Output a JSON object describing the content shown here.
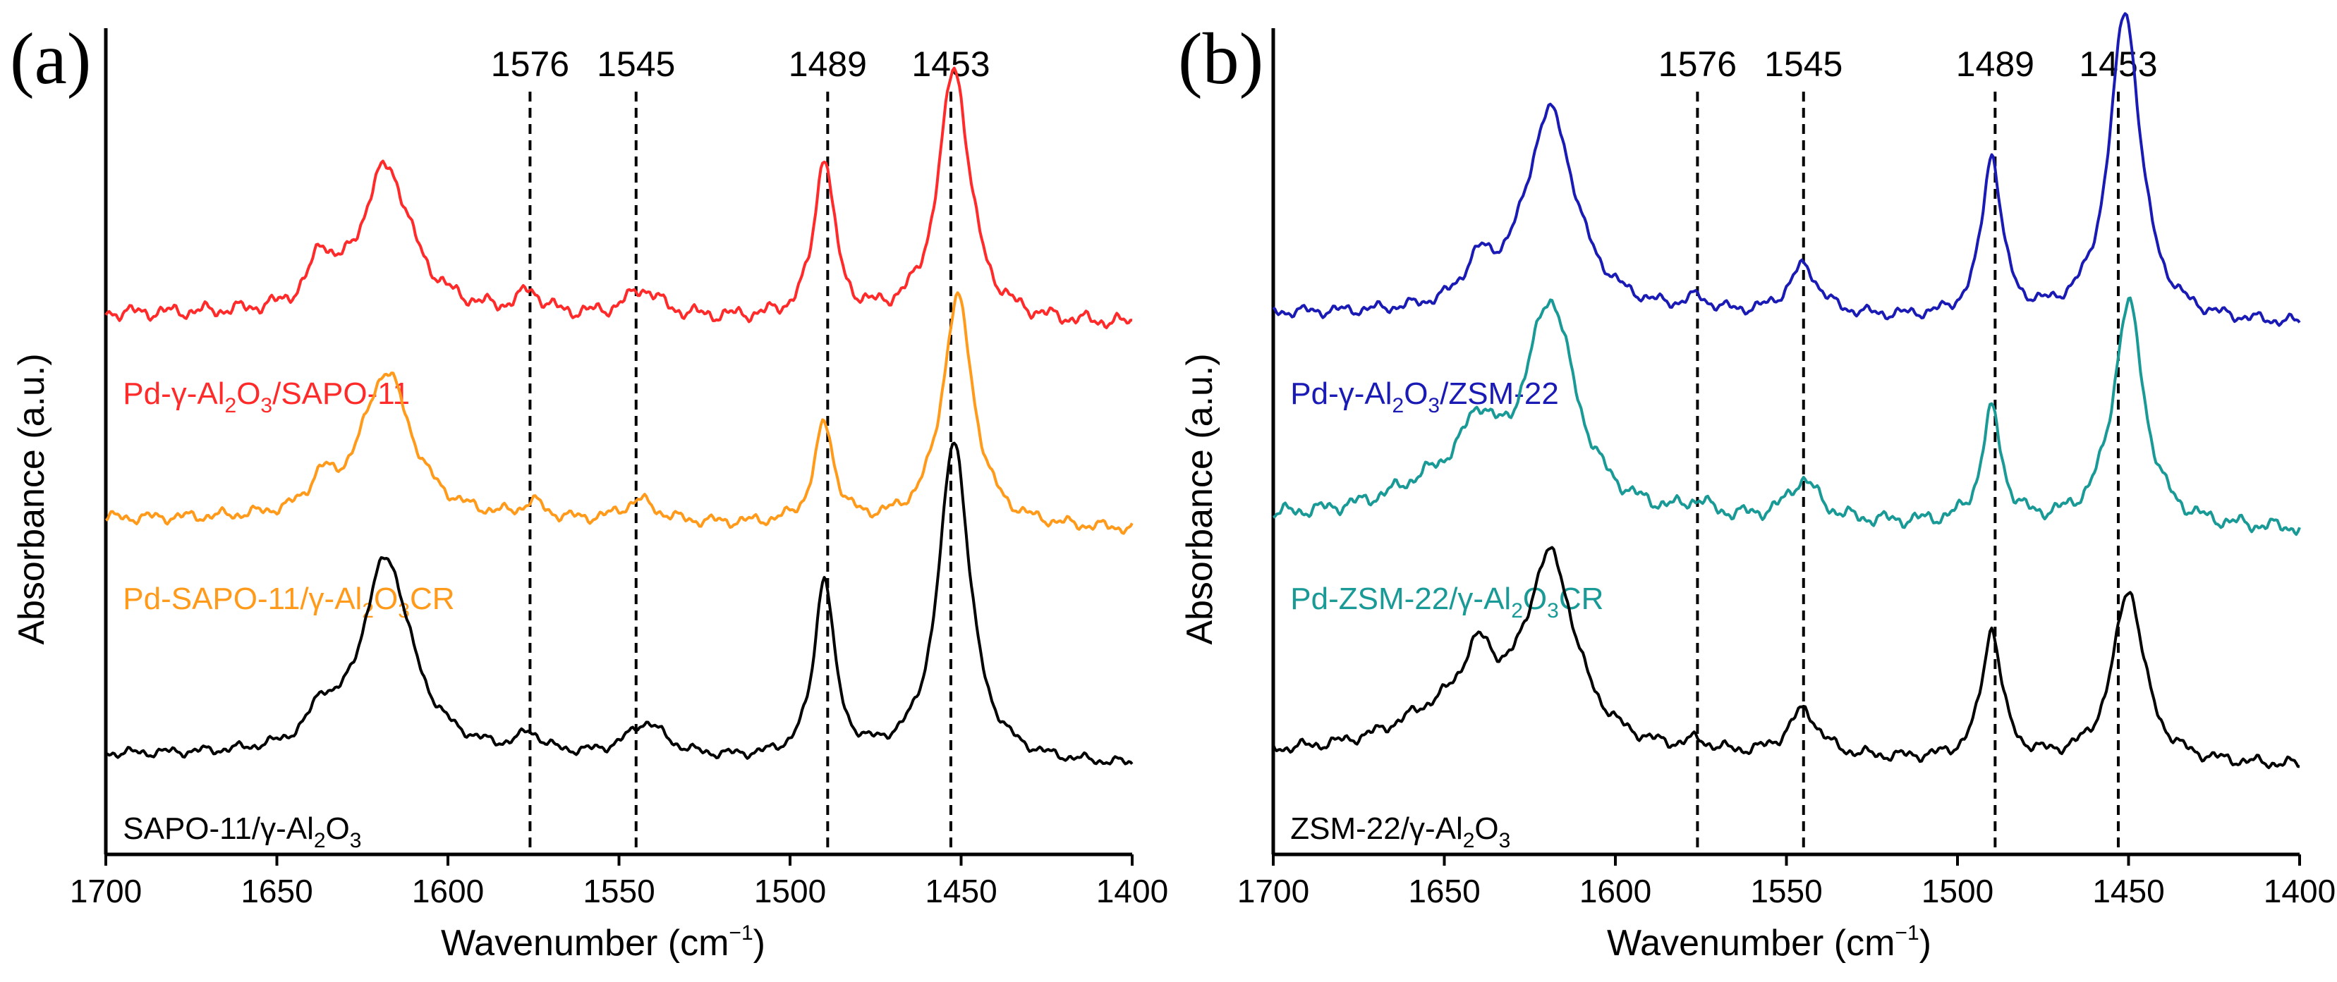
{
  "chart_data": [
    {
      "type": "line",
      "panel_label": "(a)",
      "xlabel": "Wavenumber (cm",
      "xlabel_sup": "−1",
      "xlabel_end": ")",
      "ylabel": "Absorbance (a.u.)",
      "xlim": [
        1700,
        1400
      ],
      "x_ticks": [
        "1700",
        "1650",
        "1600",
        "1550",
        "1500",
        "1450",
        "1400"
      ],
      "reference_lines": [
        "1576",
        "1545",
        "1489",
        "1453"
      ],
      "series": [
        {
          "name_parts": [
            "Pd-γ-Al",
            "2",
            "O",
            "3",
            "/SAPO-11"
          ],
          "color": "#ff2a2a",
          "baseline": 8.6,
          "noise": 0.15,
          "peaks": [
            [
              1637,
              0.75,
              4
            ],
            [
              1618,
              2.4,
              9
            ],
            [
              1576,
              0.35,
              4
            ],
            [
              1543,
              0.45,
              6
            ],
            [
              1490,
              2.6,
              3.5
            ],
            [
              1452,
              4.1,
              5.5
            ]
          ]
        },
        {
          "name_parts": [
            "Pd-SAPO-11/γ-Al",
            "2",
            "O",
            "3",
            "CR"
          ],
          "color": "#ff9a1a",
          "baseline": 5.3,
          "noise": 0.12,
          "peaks": [
            [
              1637,
              0.45,
              4
            ],
            [
              1618,
              2.4,
              9
            ],
            [
              1575,
              0.25,
              4
            ],
            [
              1544,
              0.35,
              6
            ],
            [
              1490,
              1.6,
              3.5
            ],
            [
              1451,
              3.7,
              5.5
            ]
          ]
        },
        {
          "name_parts": [
            "SAPO-11/γ-Al",
            "2",
            "O",
            "3"
          ],
          "color": "#000000",
          "baseline": 1.5,
          "noise": 0.1,
          "peaks": [
            [
              1637,
              0.5,
              4
            ],
            [
              1618,
              3.2,
              9
            ],
            [
              1576,
              0.3,
              4
            ],
            [
              1542,
              0.55,
              7
            ],
            [
              1490,
              2.9,
              3.5
            ],
            [
              1452,
              5.2,
              5.5
            ]
          ]
        }
      ]
    },
    {
      "type": "line",
      "panel_label": "(b)",
      "xlabel": "Wavenumber (cm",
      "xlabel_sup": "−1",
      "xlabel_end": ")",
      "ylabel": "Absorbance (a.u.)",
      "xlim": [
        1700,
        1400
      ],
      "x_ticks": [
        "1700",
        "1650",
        "1600",
        "1550",
        "1500",
        "1450",
        "1400"
      ],
      "reference_lines": [
        "1576",
        "1545",
        "1489",
        "1453"
      ],
      "series": [
        {
          "name_parts": [
            "Pd-γ-Al",
            "2",
            "O",
            "3",
            "/ZSM-22"
          ],
          "color": "#1a1ab4",
          "baseline": 8.6,
          "noise": 0.12,
          "peaks": [
            [
              1640,
              0.6,
              5
            ],
            [
              1619,
              3.3,
              9
            ],
            [
              1576,
              0.2,
              4
            ],
            [
              1545,
              0.8,
              5.5
            ],
            [
              1490,
              2.6,
              3.5
            ],
            [
              1451,
              5.0,
              5.5
            ]
          ]
        },
        {
          "name_parts": [
            "Pd-ZSM-22/γ-Al",
            "2",
            "O",
            "3",
            "CR"
          ],
          "color": "#1a9a96",
          "baseline": 5.3,
          "noise": 0.15,
          "peaks": [
            [
              1652,
              0.5,
              18
            ],
            [
              1640,
              1.0,
              6
            ],
            [
              1619,
              3.4,
              9
            ],
            [
              1576,
              0.2,
              4
            ],
            [
              1545,
              0.65,
              5.5
            ],
            [
              1490,
              1.8,
              3.5
            ],
            [
              1450,
              3.6,
              5.5
            ]
          ]
        },
        {
          "name_parts": [
            "ZSM-22/γ-Al",
            "2",
            "O",
            "3"
          ],
          "color": "#000000",
          "baseline": 1.5,
          "noise": 0.12,
          "peaks": [
            [
              1652,
              0.55,
              18
            ],
            [
              1640,
              1.1,
              6
            ],
            [
              1619,
              3.1,
              9
            ],
            [
              1576,
              0.15,
              4
            ],
            [
              1545,
              0.75,
              5.5
            ],
            [
              1490,
              2.1,
              3.5
            ],
            [
              1450,
              2.8,
              5.5
            ]
          ]
        }
      ]
    }
  ]
}
